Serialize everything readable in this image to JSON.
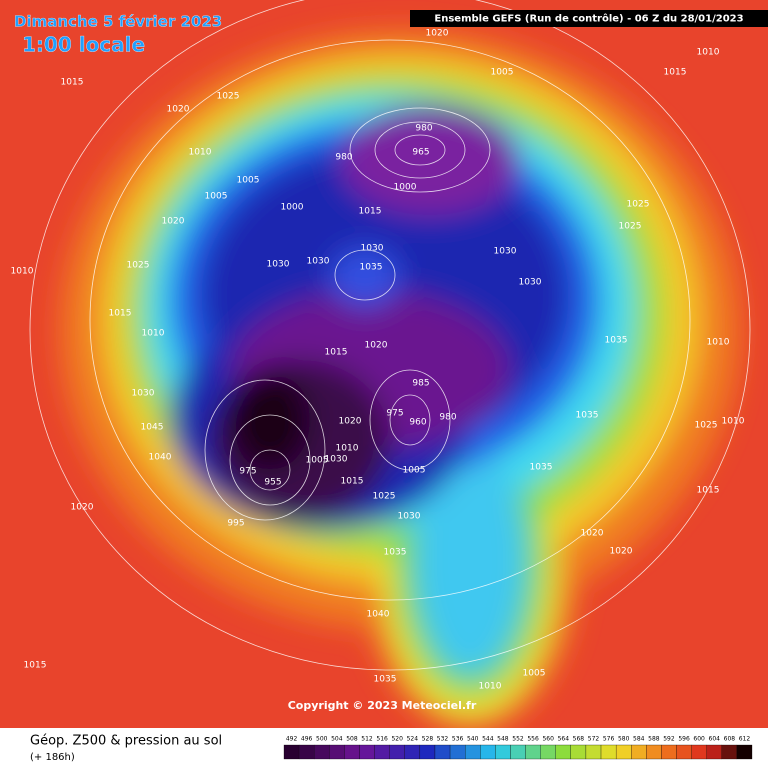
{
  "header": {
    "date": "Dimanche 5 février 2023",
    "time": "1:00 locale",
    "model": "Ensemble GEFS  (Run de contrôle)  -  06 Z du 28/01/2023"
  },
  "footer": {
    "title": "Géop. Z500 & pression au sol",
    "subtitle": "(+ 186h)",
    "copyright": "Copyright © 2023 Meteociel.fr"
  },
  "colorbar": {
    "ticks": [
      492,
      496,
      500,
      504,
      508,
      512,
      516,
      520,
      524,
      528,
      532,
      536,
      540,
      544,
      548,
      552,
      556,
      560,
      564,
      568,
      572,
      576,
      580,
      584,
      588,
      592,
      596,
      600,
      604,
      608,
      612
    ]
  },
  "isobars": [
    "1015",
    "1025",
    "1020",
    "1010",
    "1005",
    "1005",
    "1000",
    "1020",
    "1025",
    "1010",
    "1015",
    "1010",
    "1030",
    "1045",
    "1040",
    "1020",
    "995",
    "975",
    "955",
    "1015",
    "1025",
    "1030",
    "1035",
    "1040",
    "1035",
    "1015",
    "1010",
    "1005",
    "1020",
    "1020",
    "1015",
    "1035",
    "1035",
    "1025",
    "1010",
    "1010",
    "1035",
    "1030",
    "1030",
    "1025",
    "1025",
    "1010",
    "1015",
    "1005",
    "1020",
    "980",
    "965",
    "980",
    "1000",
    "1015",
    "1030",
    "1035",
    "1030",
    "1030",
    "1020",
    "1015",
    "985",
    "975",
    "960",
    "980",
    "1005",
    "1010",
    "1020",
    "1030",
    "1005"
  ]
}
